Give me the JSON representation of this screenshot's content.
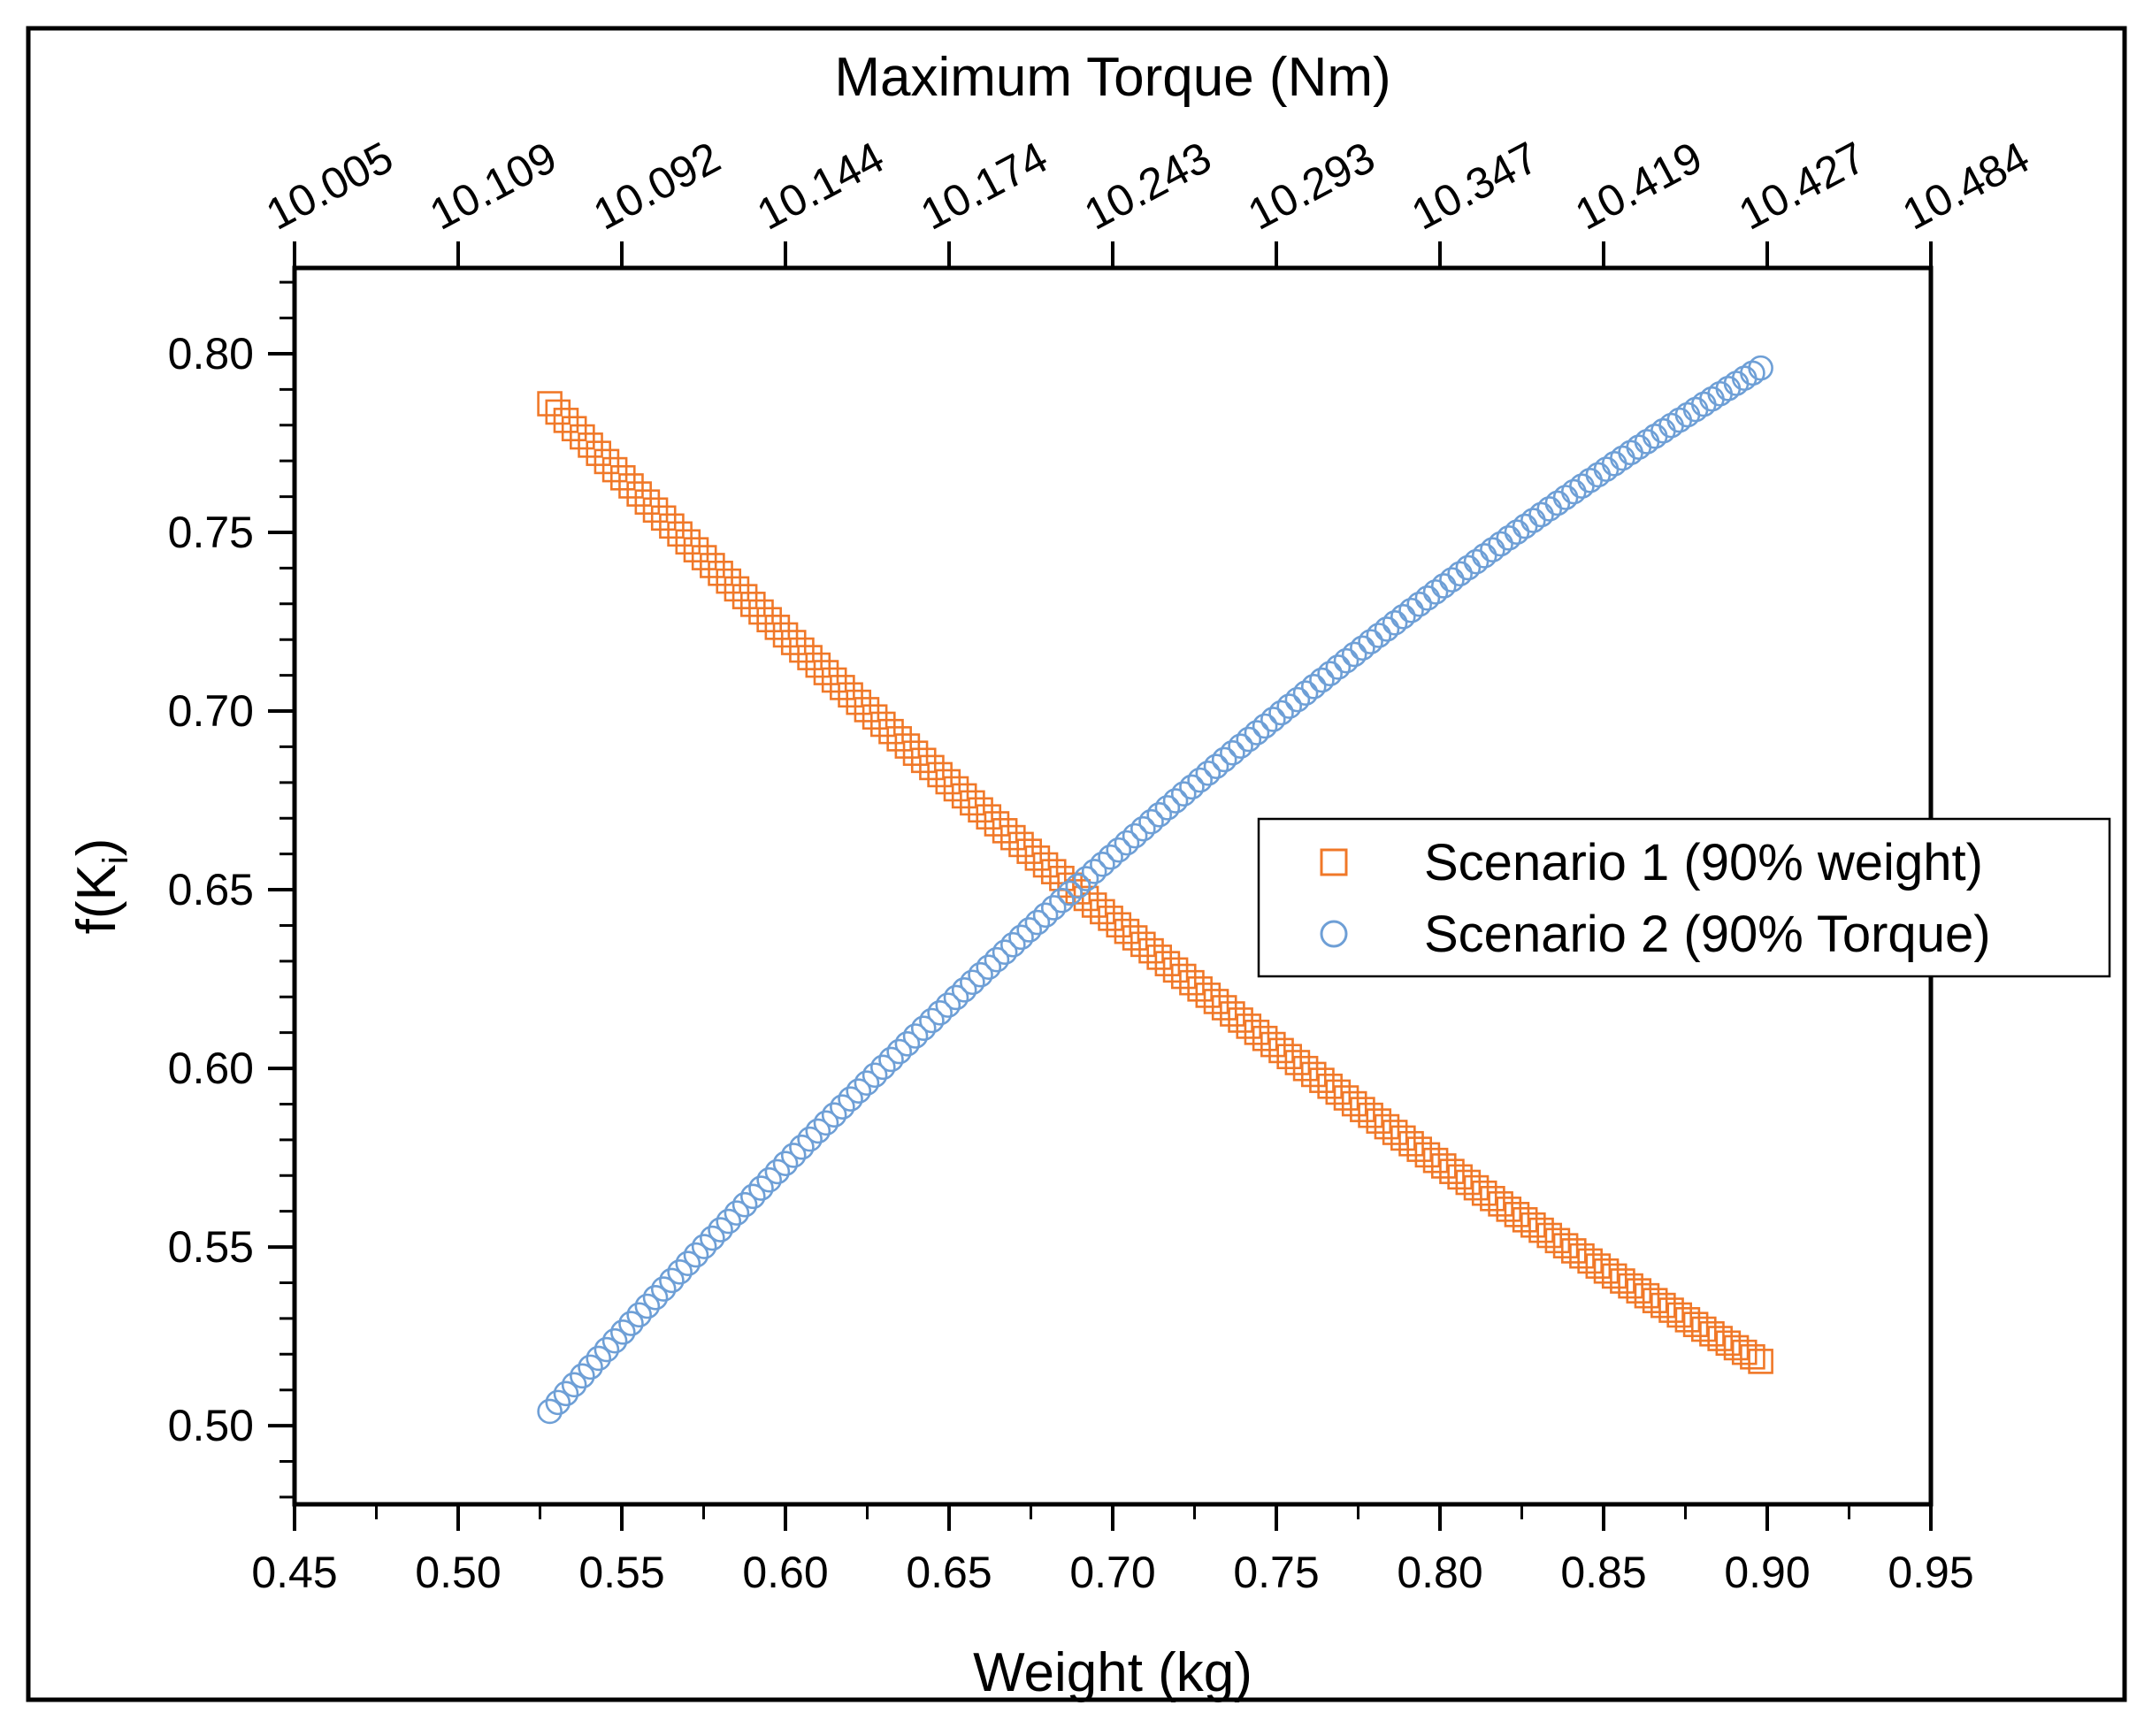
{
  "chart_data": {
    "type": "scatter",
    "title": "",
    "xlabel": "Weight (kg)",
    "ylabel": "f(K",
    "ylabel_subscript": "i",
    "ylabel_close": ")",
    "top_xlabel": "Maximum Torque (Nm)",
    "xlim": [
      0.45,
      0.95
    ],
    "ylim": [
      0.478,
      0.824
    ],
    "x_ticks": [
      "0.45",
      "0.50",
      "0.55",
      "0.60",
      "0.65",
      "0.70",
      "0.75",
      "0.80",
      "0.85",
      "0.90",
      "0.95"
    ],
    "x_tick_values": [
      0.45,
      0.5,
      0.55,
      0.6,
      0.65,
      0.7,
      0.75,
      0.8,
      0.85,
      0.9,
      0.95
    ],
    "y_ticks": [
      "0.50",
      "0.55",
      "0.60",
      "0.65",
      "0.70",
      "0.75",
      "0.80"
    ],
    "y_tick_values": [
      0.5,
      0.55,
      0.6,
      0.65,
      0.7,
      0.75,
      0.8
    ],
    "top_x_ticks": [
      "10.005",
      "10.109",
      "10.092",
      "10.144",
      "10.174",
      "10.243",
      "10.293",
      "10.347",
      "10.419",
      "10.427",
      "10.484"
    ],
    "top_x_tick_positions": [
      0.45,
      0.5,
      0.55,
      0.6,
      0.65,
      0.7,
      0.75,
      0.8,
      0.85,
      0.9,
      0.95
    ],
    "grid": false,
    "legend_position": "right",
    "series": [
      {
        "name": "Scenario 1 (90% weight)",
        "marker": "square",
        "color": "#F07828",
        "x_start": 0.528,
        "x_end": 0.898,
        "y_start": 0.786,
        "y_end": 0.518,
        "curvature": 0.02,
        "count": 150
      },
      {
        "name": "Scenario 2 (90% Torque)",
        "marker": "circle",
        "color": "#6E9FD6",
        "x_start": 0.528,
        "x_end": 0.898,
        "y_start": 0.504,
        "y_end": 0.796,
        "curvature": 0.02,
        "count": 150
      }
    ]
  }
}
